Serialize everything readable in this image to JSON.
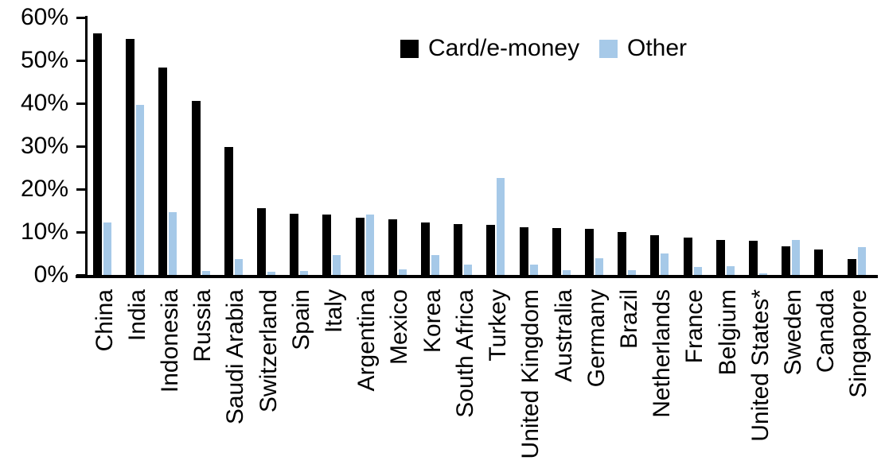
{
  "chart_data": {
    "type": "bar",
    "title": "",
    "xlabel": "",
    "ylabel": "",
    "ylim": [
      0,
      60
    ],
    "grid": false,
    "legend_position": "top-center",
    "ytick_labels": [
      "60%",
      "50%",
      "40%",
      "30%",
      "20%",
      "10%",
      "0%"
    ],
    "categories": [
      "China",
      "India",
      "Indonesia",
      "Russia",
      "Saudi Arabia",
      "Switzerland",
      "Spain",
      "Italy",
      "Argentina",
      "Mexico",
      "Korea",
      "South Africa",
      "Turkey",
      "United Kingdom",
      "Australia",
      "Germany",
      "Brazil",
      "Netherlands",
      "France",
      "Belgium",
      "United States*",
      "Sweden",
      "Canada",
      "Singapore"
    ],
    "series": [
      {
        "name": "Card/e-money",
        "color": "#000000",
        "values": [
          56.3,
          55.1,
          48.3,
          40.6,
          29.9,
          15.6,
          14.2,
          14.1,
          13.4,
          12.9,
          12.3,
          11.9,
          11.7,
          11.2,
          11.0,
          10.7,
          10.1,
          9.3,
          8.7,
          8.2,
          8.0,
          6.6,
          5.9,
          3.8
        ]
      },
      {
        "name": "Other",
        "color": "#A6C9E8",
        "values": [
          12.2,
          39.7,
          14.7,
          1.0,
          3.8,
          0.7,
          0.9,
          4.6,
          14.0,
          1.3,
          4.6,
          2.4,
          22.6,
          2.4,
          1.1,
          3.9,
          1.2,
          5.0,
          1.8,
          2.1,
          0.3,
          8.2,
          0.0,
          6.5
        ]
      }
    ]
  },
  "legend": {
    "card_label": "Card/e-money",
    "other_label": "Other"
  }
}
